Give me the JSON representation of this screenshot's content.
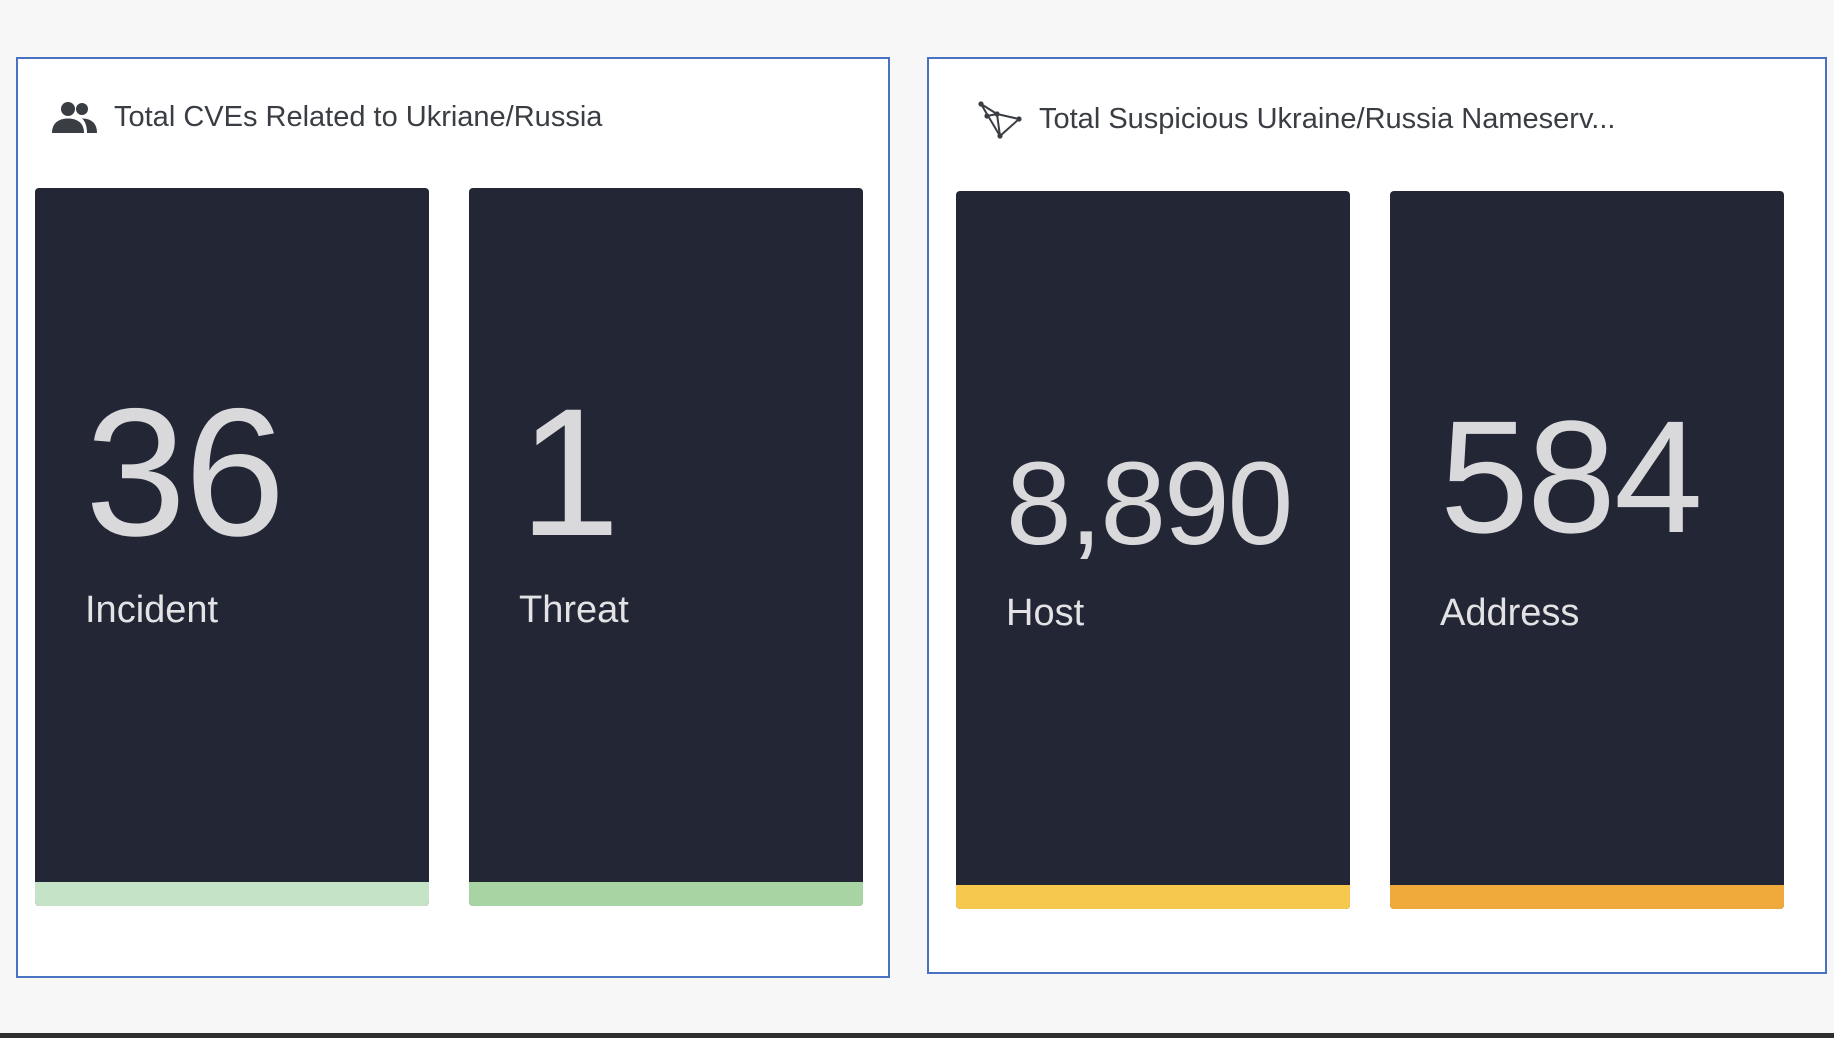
{
  "panels": [
    {
      "title": "Total CVEs Related to Ukriane/Russia",
      "icon": "people-icon",
      "tiles": [
        {
          "value": "36",
          "label": "Incident",
          "bar_color": "#c5e3c7"
        },
        {
          "value": "1",
          "label": "Threat",
          "bar_color": "#a8d4a4"
        }
      ]
    },
    {
      "title": "Total Suspicious Ukraine/Russia Nameserv...",
      "icon": "network-graph-icon",
      "tiles": [
        {
          "value": "8,890",
          "label": "Host",
          "bar_color": "#f6c94e"
        },
        {
          "value": "584",
          "label": "Address",
          "bar_color": "#f0aa3c"
        }
      ]
    }
  ],
  "colors": {
    "tile_background": "#232735",
    "panel_border": "#4a72c2",
    "tile_text": "#d9d9dc"
  }
}
